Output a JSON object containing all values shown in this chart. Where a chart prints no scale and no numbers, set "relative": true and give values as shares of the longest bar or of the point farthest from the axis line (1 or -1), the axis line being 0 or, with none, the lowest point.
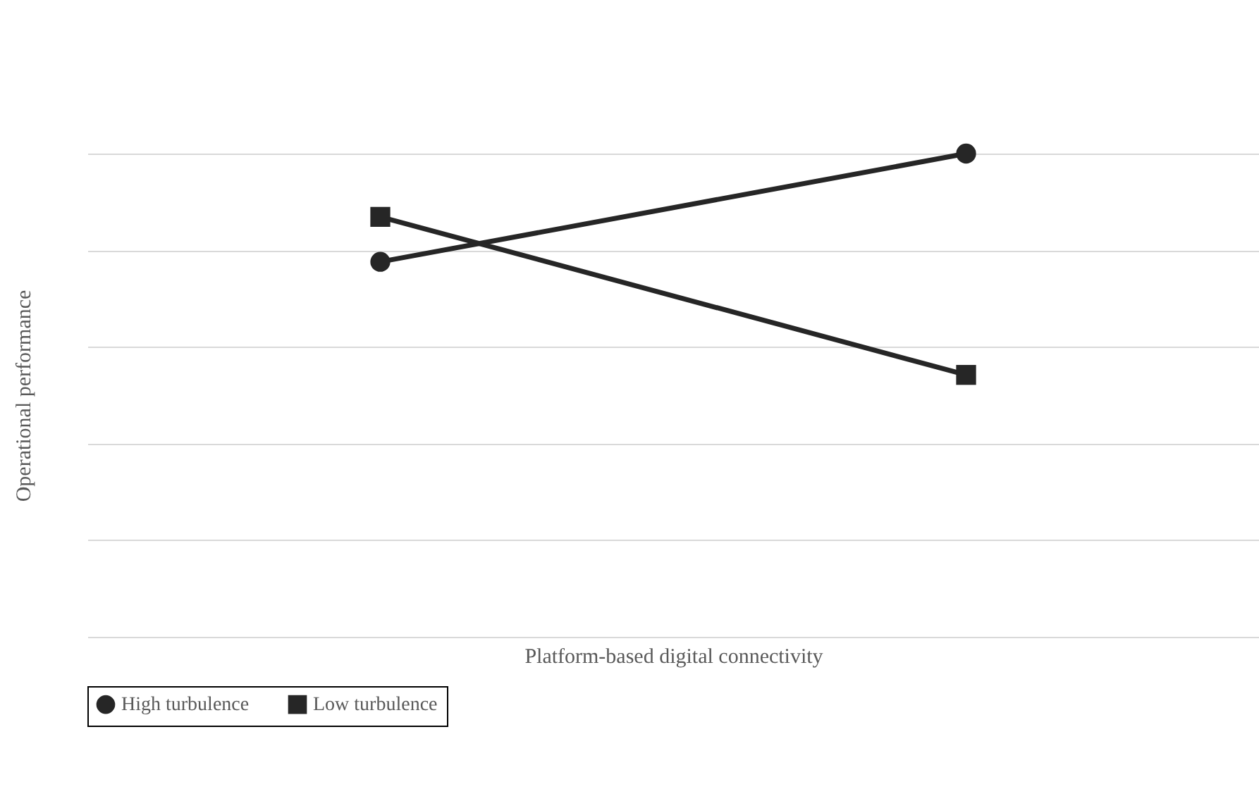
{
  "chart_data": {
    "type": "line",
    "xlabel": "Platform-based digital connectivity",
    "ylabel": "Operational performance",
    "categories": [
      null,
      null
    ],
    "relative": true,
    "grid": "y",
    "legend": "bottom",
    "series": [
      {
        "name": "High turbulence",
        "color": "#262626",
        "marker": "circle",
        "values": [
          0.776,
          1
        ]
      },
      {
        "name": "Low turbulence",
        "color": "#262626",
        "marker": "square",
        "values": [
          0.869,
          0.542
        ]
      }
    ]
  }
}
